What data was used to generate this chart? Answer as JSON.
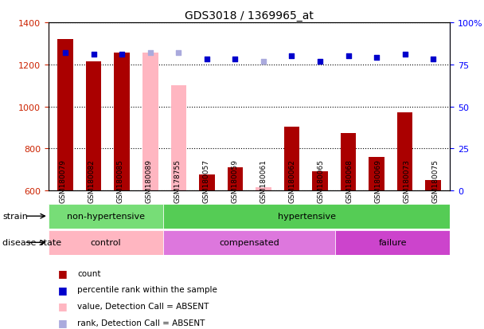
{
  "title": "GDS3018 / 1369965_at",
  "samples": [
    "GSM180079",
    "GSM180082",
    "GSM180085",
    "GSM180089",
    "GSM178755",
    "GSM180057",
    "GSM180059",
    "GSM180061",
    "GSM180062",
    "GSM180065",
    "GSM180068",
    "GSM180069",
    "GSM180073",
    "GSM180075"
  ],
  "bar_values": [
    1320,
    1215,
    1255,
    1255,
    1100,
    675,
    710,
    615,
    905,
    690,
    875,
    760,
    970,
    650
  ],
  "bar_absent": [
    false,
    false,
    false,
    true,
    true,
    false,
    false,
    true,
    false,
    false,
    false,
    false,
    false,
    false
  ],
  "percentile_values": [
    82,
    81,
    81,
    82,
    82,
    78,
    78,
    77,
    80,
    77,
    80,
    79,
    81,
    78
  ],
  "percentile_absent": [
    false,
    false,
    false,
    true,
    true,
    false,
    false,
    true,
    false,
    false,
    false,
    false,
    false,
    false
  ],
  "ylim_left": [
    600,
    1400
  ],
  "ylim_right": [
    0,
    100
  ],
  "yticks_left": [
    600,
    800,
    1000,
    1200,
    1400
  ],
  "yticks_right": [
    0,
    25,
    50,
    75,
    100
  ],
  "strain_groups": [
    {
      "label": "non-hypertensive",
      "start": 0,
      "end": 4,
      "color": "#77DD77"
    },
    {
      "label": "hypertensive",
      "start": 4,
      "end": 14,
      "color": "#55CC55"
    }
  ],
  "disease_groups": [
    {
      "label": "control",
      "start": 0,
      "end": 4,
      "color": "#FFB6C1"
    },
    {
      "label": "compensated",
      "start": 4,
      "end": 10,
      "color": "#DD77DD"
    },
    {
      "label": "failure",
      "start": 10,
      "end": 14,
      "color": "#CC44CC"
    }
  ],
  "bar_color_normal": "#AA0000",
  "bar_color_absent": "#FFB6C1",
  "dot_color_normal": "#0000CC",
  "dot_color_absent": "#AAAADD",
  "legend_items": [
    {
      "label": "count",
      "color": "#AA0000"
    },
    {
      "label": "percentile rank within the sample",
      "color": "#0000CC"
    },
    {
      "label": "value, Detection Call = ABSENT",
      "color": "#FFB6C1"
    },
    {
      "label": "rank, Detection Call = ABSENT",
      "color": "#AAAADD"
    }
  ]
}
